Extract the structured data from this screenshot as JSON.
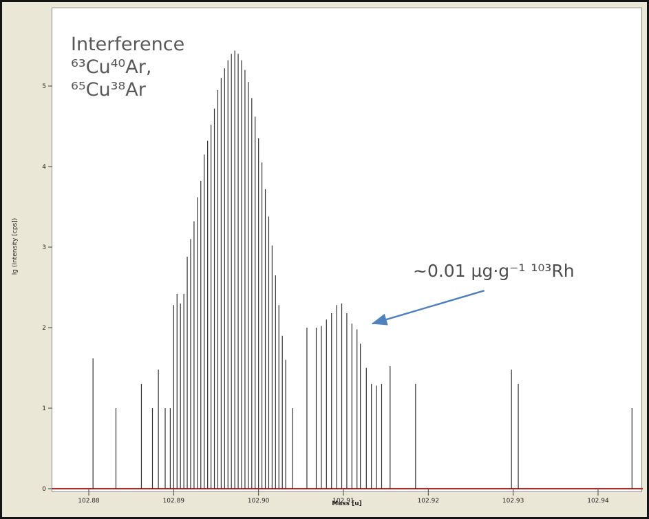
{
  "frame": {
    "background_color": "#eae7d6",
    "border_color": "#141414",
    "plot_background": "#ffffff"
  },
  "chart_data": {
    "type": "bar",
    "subtype": "mass-spectrum-sticks",
    "title": "",
    "xlabel": "Mass [u]",
    "ylabel": "lg (Intensity [cps])",
    "xlim": [
      102.8757,
      102.9453
    ],
    "ylim": [
      0,
      5.6
    ],
    "grid": false,
    "stick_color": "#303030",
    "baseline_color": "#cc2222",
    "x_ticks": [
      {
        "value": 102.88,
        "label": "102.88"
      },
      {
        "value": 102.89,
        "label": "102.89"
      },
      {
        "value": 102.9,
        "label": "102.90"
      },
      {
        "value": 102.91,
        "label": "102.91"
      },
      {
        "value": 102.92,
        "label": "102.92"
      },
      {
        "value": 102.93,
        "label": "102.93"
      },
      {
        "value": 102.94,
        "label": "102.94"
      }
    ],
    "y_ticks": [
      0,
      1,
      2,
      3,
      4,
      5
    ],
    "peaks": [
      [
        102.8805,
        1.62
      ],
      [
        102.8832,
        1.0
      ],
      [
        102.8862,
        1.3
      ],
      [
        102.8875,
        1.0
      ],
      [
        102.8882,
        1.48
      ],
      [
        102.889,
        1.0
      ],
      [
        102.8896,
        1.0
      ],
      [
        102.89,
        2.28
      ],
      [
        102.8904,
        2.42
      ],
      [
        102.8908,
        2.3
      ],
      [
        102.8912,
        2.42
      ],
      [
        102.8916,
        2.88
      ],
      [
        102.892,
        3.1
      ],
      [
        102.8924,
        3.32
      ],
      [
        102.8928,
        3.62
      ],
      [
        102.8932,
        3.82
      ],
      [
        102.8936,
        4.15
      ],
      [
        102.894,
        4.32
      ],
      [
        102.8944,
        4.52
      ],
      [
        102.8948,
        4.72
      ],
      [
        102.8952,
        4.95
      ],
      [
        102.8956,
        5.1
      ],
      [
        102.896,
        5.22
      ],
      [
        102.8964,
        5.32
      ],
      [
        102.8968,
        5.4
      ],
      [
        102.8972,
        5.44
      ],
      [
        102.8976,
        5.4
      ],
      [
        102.898,
        5.32
      ],
      [
        102.8984,
        5.2
      ],
      [
        102.8988,
        5.05
      ],
      [
        102.8992,
        4.85
      ],
      [
        102.8996,
        4.62
      ],
      [
        102.9,
        4.35
      ],
      [
        102.9004,
        4.05
      ],
      [
        102.9008,
        3.72
      ],
      [
        102.9012,
        3.38
      ],
      [
        102.9016,
        3.02
      ],
      [
        102.902,
        2.65
      ],
      [
        102.9024,
        2.28
      ],
      [
        102.9028,
        1.9
      ],
      [
        102.9032,
        1.6
      ],
      [
        102.904,
        1.0
      ],
      [
        102.9057,
        2.0
      ],
      [
        102.9068,
        2.0
      ],
      [
        102.9074,
        2.02
      ],
      [
        102.908,
        2.1
      ],
      [
        102.9086,
        2.18
      ],
      [
        102.9092,
        2.28
      ],
      [
        102.9098,
        2.3
      ],
      [
        102.9104,
        2.18
      ],
      [
        102.911,
        2.05
      ],
      [
        102.9116,
        1.98
      ],
      [
        102.912,
        1.8
      ],
      [
        102.9127,
        1.5
      ],
      [
        102.9133,
        1.3
      ],
      [
        102.9139,
        1.28
      ],
      [
        102.9145,
        1.3
      ],
      [
        102.9155,
        1.52
      ],
      [
        102.9185,
        1.3
      ],
      [
        102.9298,
        1.48
      ],
      [
        102.9306,
        1.3
      ],
      [
        102.944,
        1.0
      ]
    ],
    "annotations": [
      {
        "id": "interference",
        "lines": [
          "Interference",
          "⁶³Cu⁴⁰Ar,",
          "⁶⁵Cu³⁸Ar"
        ],
        "color": "#595959"
      },
      {
        "id": "rh",
        "text": "~0.01 µg·g⁻¹ ¹⁰³Rh",
        "color": "#4d4d4d"
      },
      {
        "id": "arrow",
        "from_mass": 102.9266,
        "from_lg": 2.46,
        "to_mass": 102.9134,
        "to_lg": 2.05,
        "color": "#4f81bd"
      }
    ]
  }
}
